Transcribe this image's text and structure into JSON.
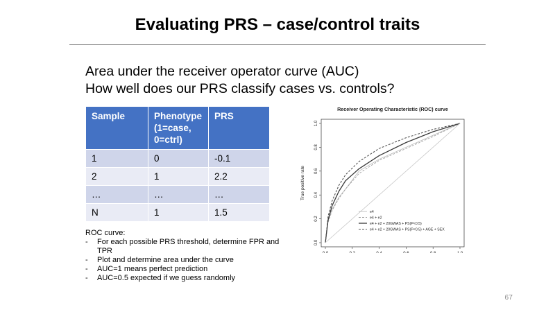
{
  "slide": {
    "title": "Evaluating PRS – case/control traits",
    "subtitle_lines": [
      "Area under the receiver operator curve (AUC)",
      "How well does our PRS classify cases vs. controls?"
    ],
    "page_number": "67"
  },
  "table": {
    "headers": [
      "Sample",
      "Phenotype (1=case, 0=ctrl)",
      "PRS"
    ],
    "rows": [
      [
        "1",
        "0",
        "-0.1"
      ],
      [
        "2",
        "1",
        "2.2"
      ],
      [
        "…",
        "…",
        "…"
      ],
      [
        "N",
        "1",
        "1.5"
      ]
    ]
  },
  "notes": {
    "heading": "ROC curve:",
    "bullets": [
      "For each possible PRS threshold, determine FPR and TPR",
      "Plot and determine area under the curve",
      "AUC=1 means perfect prediction",
      "AUC=0.5 expected if we guess randomly"
    ],
    "bullet_marker": "-"
  },
  "chart_data": {
    "type": "line",
    "title": "Receiver Operating Characteristic (ROC) curve",
    "xlabel": "False positive rate",
    "ylabel": "True positive rate",
    "xlim": [
      0,
      1
    ],
    "ylim": [
      0,
      1
    ],
    "xticks": [
      "0.0",
      "0.2",
      "0.4",
      "0.6",
      "0.8",
      "1.0"
    ],
    "yticks": [
      "0.0",
      "0.2",
      "0.4",
      "0.6",
      "0.8",
      "1.0"
    ],
    "legend_position": "bottom-right",
    "series": [
      {
        "name": "e4",
        "style": "solid-light",
        "color": "#bdbdbd",
        "x": [
          0,
          0.02,
          0.05,
          0.1,
          0.15,
          0.25,
          0.4,
          0.6,
          0.8,
          1
        ],
        "y": [
          0,
          0.18,
          0.28,
          0.38,
          0.45,
          0.6,
          0.7,
          0.8,
          0.9,
          1
        ]
      },
      {
        "name": "e4 + e2",
        "style": "dashed-light",
        "color": "#9e9e9e",
        "x": [
          0,
          0.02,
          0.05,
          0.1,
          0.15,
          0.25,
          0.4,
          0.6,
          0.8,
          1
        ],
        "y": [
          0,
          0.17,
          0.27,
          0.37,
          0.45,
          0.58,
          0.69,
          0.79,
          0.89,
          1
        ]
      },
      {
        "name": "e4 + e2 + 20GWAS + PS(P<0.5)",
        "style": "solid-dark",
        "color": "#3a3a3a",
        "x": [
          0,
          0.02,
          0.05,
          0.1,
          0.15,
          0.25,
          0.4,
          0.6,
          0.8,
          1
        ],
        "y": [
          0,
          0.19,
          0.31,
          0.43,
          0.52,
          0.62,
          0.73,
          0.84,
          0.93,
          1
        ]
      },
      {
        "name": "e4 + e2 + 20GWAS + PS(P<0.5) + AGE + SEX",
        "style": "dashed-dark",
        "color": "#555555",
        "x": [
          0,
          0.02,
          0.05,
          0.1,
          0.15,
          0.25,
          0.4,
          0.6,
          0.8,
          1
        ],
        "y": [
          0,
          0.22,
          0.35,
          0.48,
          0.57,
          0.68,
          0.79,
          0.88,
          0.95,
          1
        ]
      },
      {
        "name": "",
        "style": "diagonal",
        "color": "#c8c8c8",
        "x": [
          0,
          1
        ],
        "y": [
          0,
          1
        ]
      }
    ]
  }
}
